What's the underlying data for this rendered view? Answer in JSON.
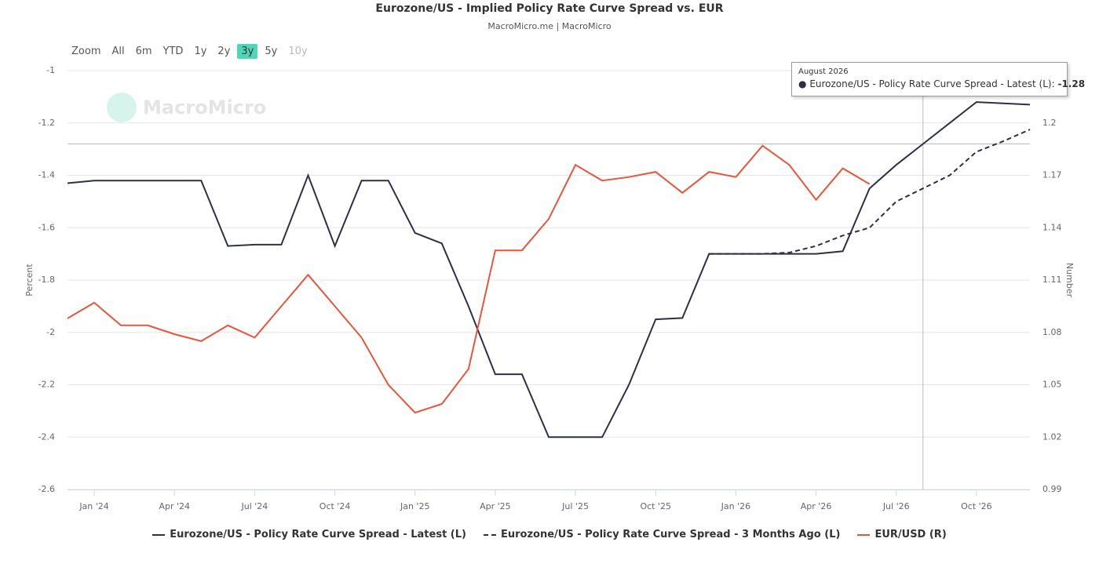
{
  "chart_data": {
    "type": "line",
    "title": "Eurozone/US - Implied Policy Rate Curve Spread vs. EUR",
    "subtitle": "MacroMicro.me | MacroMicro",
    "watermark": "MacroMicro",
    "y_label": "Percent",
    "y2_label": "Number",
    "range_selector": {
      "label": "Zoom",
      "buttons": [
        "All",
        "6m",
        "YTD",
        "1y",
        "2y",
        "3y",
        "5y",
        "10y"
      ],
      "selected": "3y",
      "disabled": [
        "10y"
      ]
    },
    "tooltip": {
      "title": "August 2026",
      "label": "Eurozone/US - Policy Rate Curve Spread - Latest (L):",
      "value": -1.28
    },
    "x": [
      "2023-12",
      "2024-01",
      "2024-02",
      "2024-03",
      "2024-04",
      "2024-05",
      "2024-06",
      "2024-07",
      "2024-08",
      "2024-09",
      "2024-10",
      "2024-11",
      "2024-12",
      "2025-01",
      "2025-02",
      "2025-03",
      "2025-04",
      "2025-05",
      "2025-06",
      "2025-07",
      "2025-08",
      "2025-09",
      "2025-10",
      "2025-11",
      "2025-12",
      "2026-01",
      "2026-02",
      "2026-03",
      "2026-04",
      "2026-05",
      "2026-06",
      "2026-07",
      "2026-08",
      "2026-09",
      "2026-10",
      "2026-11",
      "2026-12"
    ],
    "xlim": [
      "2023-12",
      "2026-12"
    ],
    "xticks": [
      {
        "value": "2024-01",
        "label": "Jan '24"
      },
      {
        "value": "2024-04",
        "label": "Apr '24"
      },
      {
        "value": "2024-07",
        "label": "Jul '24"
      },
      {
        "value": "2024-10",
        "label": "Oct '24"
      },
      {
        "value": "2025-01",
        "label": "Jan '25"
      },
      {
        "value": "2025-04",
        "label": "Apr '25"
      },
      {
        "value": "2025-07",
        "label": "Jul '25"
      },
      {
        "value": "2025-10",
        "label": "Oct '25"
      },
      {
        "value": "2026-01",
        "label": "Jan '26"
      },
      {
        "value": "2026-04",
        "label": "Apr '26"
      },
      {
        "value": "2026-07",
        "label": "Jul '26"
      },
      {
        "value": "2026-10",
        "label": "Oct '26"
      }
    ],
    "ylim": [
      -2.6,
      -1
    ],
    "yticks": [
      -1,
      -1.2,
      -1.4,
      -1.6,
      -1.8,
      -2,
      -2.2,
      -2.4,
      -2.6
    ],
    "y2lim": [
      0.99,
      1.23
    ],
    "y2ticks": [
      1.2,
      1.17,
      1.14,
      1.11,
      1.08,
      1.05,
      1.02,
      0.99
    ],
    "grid": true,
    "series": [
      {
        "name": "Eurozone/US - Policy Rate Curve Spread - Latest (L)",
        "color": "#2e2f48",
        "dash": "solid",
        "values": [
          -1.43,
          -1.42,
          -1.42,
          -1.42,
          -1.42,
          -1.42,
          -1.67,
          -1.665,
          -1.665,
          -1.4,
          -1.67,
          -1.42,
          -1.42,
          -1.62,
          -1.66,
          -1.9,
          -2.16,
          -2.16,
          -2.4,
          -2.4,
          -2.4,
          -2.2,
          -1.95,
          -1.945,
          -1.7,
          -1.7,
          -1.7,
          -1.7,
          -1.7,
          -1.69,
          -1.45,
          -1.36,
          -1.28,
          -1.2,
          -1.12,
          -1.125,
          -1.13
        ]
      },
      {
        "name": "Eurozone/US - Policy Rate Curve Spread - 3 Months Ago (L)",
        "color": "#2e2f48",
        "dash": "dash",
        "values": [
          null,
          null,
          null,
          null,
          null,
          null,
          null,
          null,
          null,
          null,
          null,
          null,
          null,
          null,
          null,
          null,
          null,
          null,
          null,
          null,
          null,
          null,
          null,
          null,
          -1.7,
          -1.7,
          -1.7,
          -1.695,
          -1.67,
          -1.63,
          -1.6,
          -1.5,
          -1.45,
          -1.4,
          -1.31,
          -1.27,
          -1.225
        ]
      },
      {
        "name": "EUR/USD (R)",
        "color": "#e8553a",
        "dash": "solid",
        "axis": "y2",
        "values": [
          1.088,
          1.097,
          1.084,
          1.084,
          1.079,
          1.075,
          1.084,
          1.077,
          1.095,
          1.113,
          1.095,
          1.077,
          1.05,
          1.034,
          1.039,
          1.059,
          1.127,
          1.127,
          1.145,
          1.176,
          1.167,
          1.169,
          1.172,
          1.16,
          1.172,
          1.169,
          1.187,
          1.176,
          1.156,
          1.174,
          1.165,
          null,
          null,
          null,
          null,
          null,
          null
        ]
      }
    ]
  }
}
